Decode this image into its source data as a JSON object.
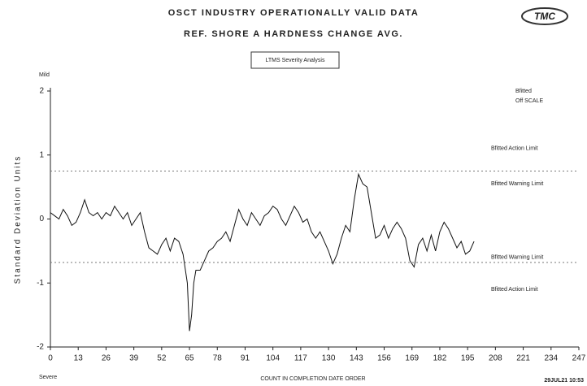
{
  "chart_data": {
    "type": "line",
    "title": "OSCT INDUSTRY OPERATIONALLY VALID DATA",
    "subtitle": "REF. SHORE A HARDNESS CHANGE AVG.",
    "box_label": "LTMS Severity Analysis",
    "logo": "TMC",
    "y_label": "Standard Deviation Units",
    "x_label": "COUNT IN COMPLETION DATE ORDER",
    "top_label": "Mild",
    "bottom_label": "Severe",
    "timestamp": "29JUL21 10:53",
    "legend": [
      "Bfitted",
      "Off SCALE"
    ],
    "color": "#111111",
    "xlim": [
      0,
      247
    ],
    "xticks": [
      0,
      13,
      26,
      39,
      52,
      65,
      78,
      91,
      104,
      117,
      130,
      143,
      156,
      169,
      182,
      195,
      208,
      221,
      234,
      247
    ],
    "ylim": [
      -2,
      2
    ],
    "yticks": [
      2,
      1,
      0,
      -1,
      -2
    ],
    "reference_lines": [
      0.75,
      -0.68
    ],
    "annotations": [
      {
        "text": "Bfitted Action Limit",
        "y": 1.1
      },
      {
        "text": "Bfitted Warning Limit",
        "y": 0.55
      },
      {
        "text": "Bfitted Warning Limit",
        "y": -0.6
      },
      {
        "text": "Bfitted Action Limit",
        "y": -1.1
      }
    ],
    "x": [
      0,
      2,
      4,
      6,
      8,
      10,
      12,
      14,
      16,
      18,
      20,
      22,
      24,
      26,
      28,
      30,
      32,
      34,
      36,
      38,
      40,
      42,
      44,
      46,
      48,
      50,
      52,
      54,
      56,
      58,
      60,
      62,
      64,
      65,
      66,
      67,
      68,
      70,
      72,
      74,
      76,
      78,
      80,
      82,
      84,
      86,
      88,
      90,
      92,
      94,
      96,
      98,
      100,
      102,
      104,
      106,
      108,
      110,
      112,
      114,
      116,
      118,
      120,
      122,
      124,
      126,
      128,
      130,
      132,
      134,
      136,
      138,
      140,
      142,
      144,
      146,
      148,
      150,
      152,
      154,
      156,
      158,
      160,
      162,
      164,
      166,
      168,
      170,
      172,
      174,
      176,
      178,
      180,
      182,
      184,
      186,
      188,
      190,
      192,
      194,
      196,
      198
    ],
    "values": [
      0.1,
      0.05,
      0.0,
      0.15,
      0.05,
      -0.1,
      -0.05,
      0.1,
      0.3,
      0.1,
      0.05,
      0.1,
      0.0,
      0.1,
      0.05,
      0.2,
      0.1,
      0.0,
      0.1,
      -0.1,
      0.0,
      0.1,
      -0.2,
      -0.45,
      -0.5,
      -0.55,
      -0.4,
      -0.3,
      -0.5,
      -0.3,
      -0.35,
      -0.55,
      -1.0,
      -1.75,
      -1.5,
      -1.0,
      -0.8,
      -0.8,
      -0.65,
      -0.5,
      -0.45,
      -0.35,
      -0.3,
      -0.2,
      -0.35,
      -0.1,
      0.15,
      0.0,
      -0.1,
      0.1,
      0.0,
      -0.1,
      0.05,
      0.1,
      0.2,
      0.15,
      0.0,
      -0.1,
      0.05,
      0.2,
      0.1,
      -0.05,
      0.0,
      -0.2,
      -0.3,
      -0.2,
      -0.35,
      -0.5,
      -0.7,
      -0.55,
      -0.3,
      -0.1,
      -0.2,
      0.3,
      0.7,
      0.55,
      0.5,
      0.1,
      -0.3,
      -0.25,
      -0.1,
      -0.3,
      -0.15,
      -0.05,
      -0.15,
      -0.3,
      -0.65,
      -0.75,
      -0.4,
      -0.3,
      -0.5,
      -0.25,
      -0.5,
      -0.2,
      -0.05,
      -0.15,
      -0.3,
      -0.45,
      -0.35,
      -0.55,
      -0.5,
      -0.35
    ]
  }
}
